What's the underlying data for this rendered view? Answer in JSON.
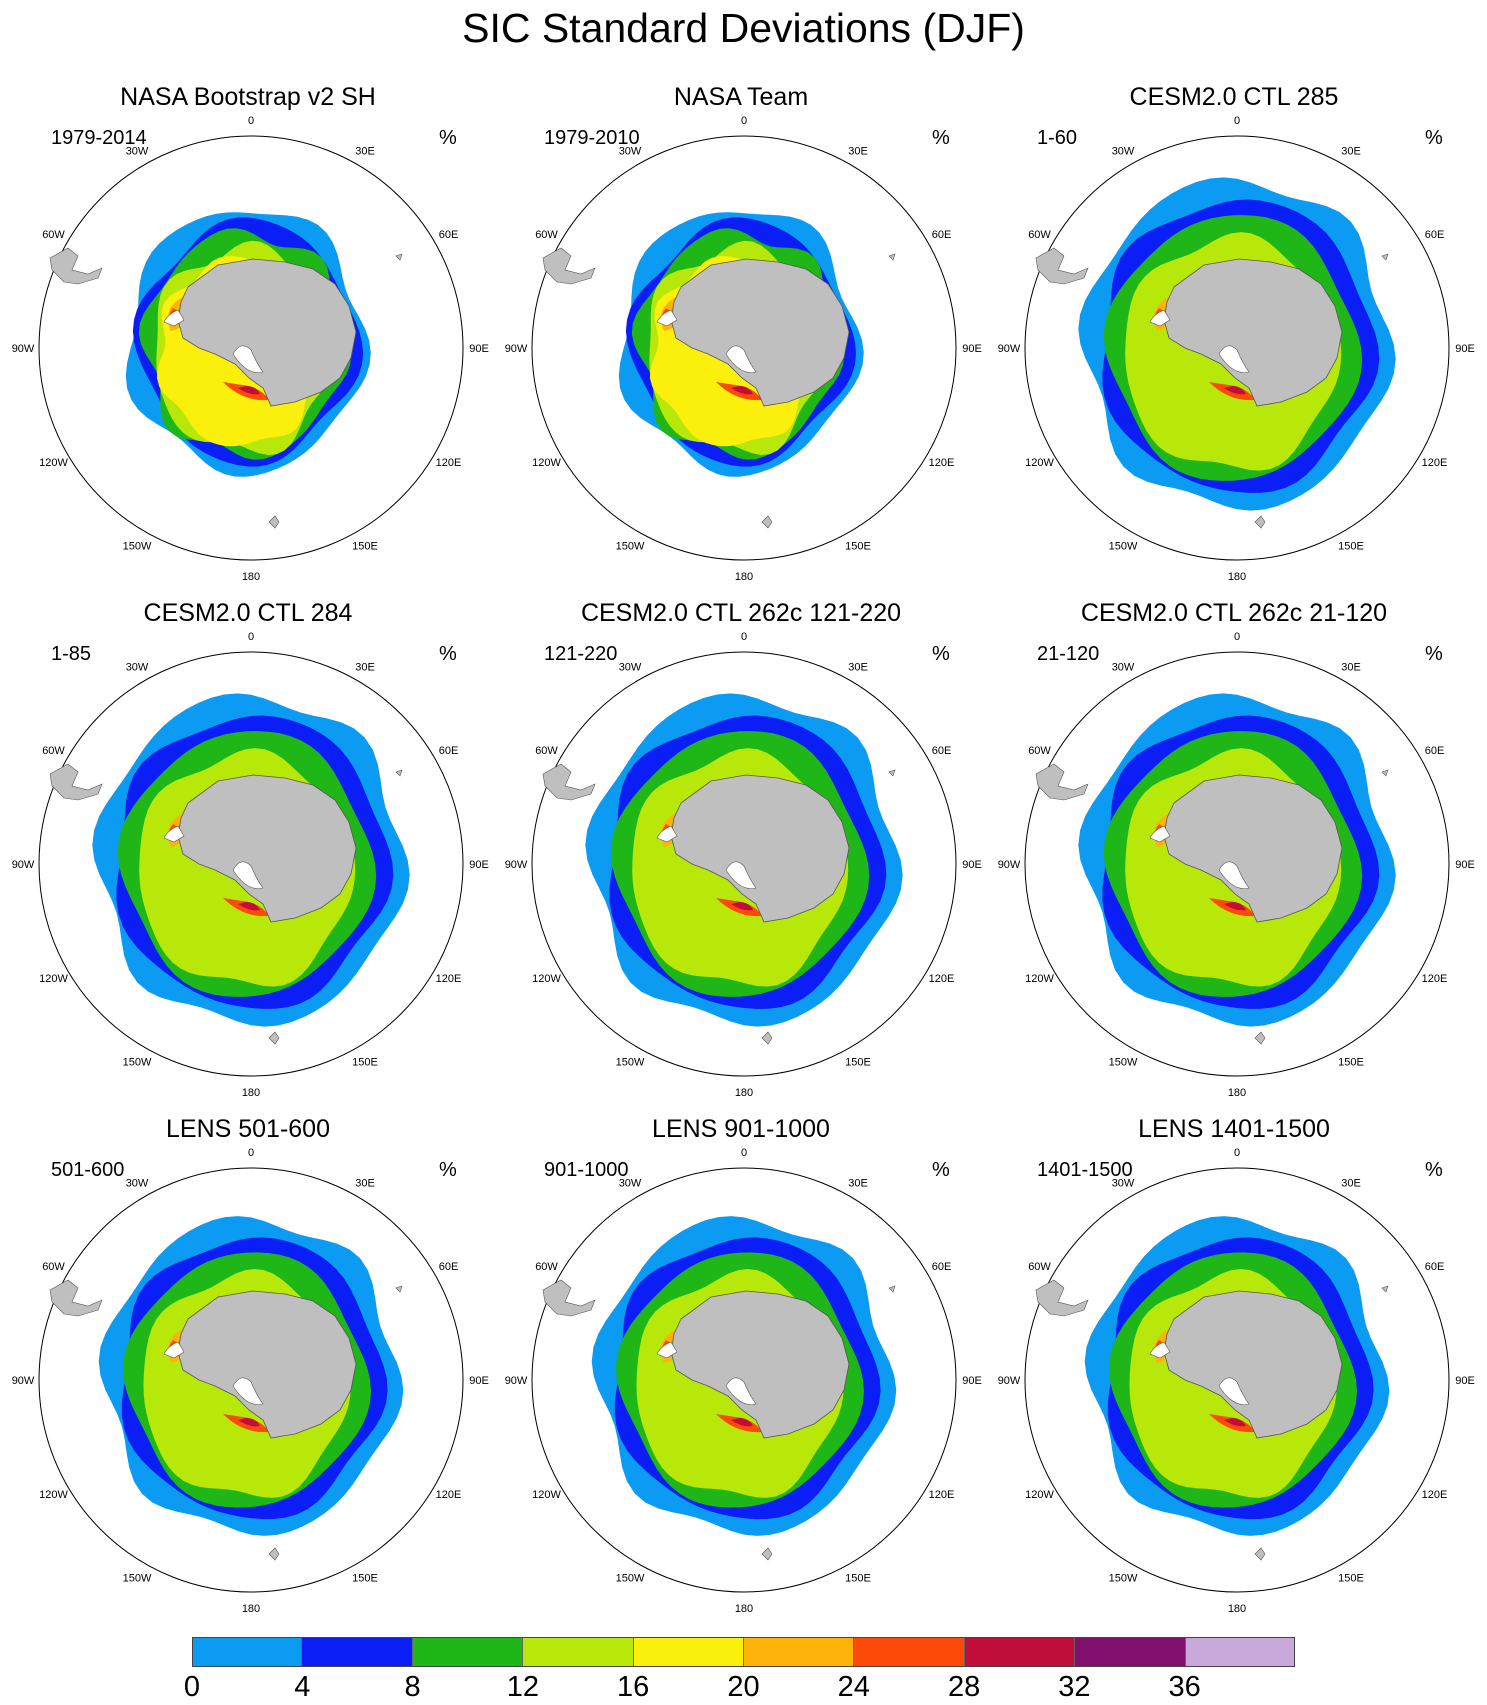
{
  "figure_title": "SIC Standard Deviations (DJF)",
  "longitude_labels": [
    "0",
    "30E",
    "60E",
    "90E",
    "120E",
    "150E",
    "180",
    "150W",
    "120W",
    "90W",
    "60W",
    "30W"
  ],
  "panels": [
    {
      "title": "NASA Bootstrap v2 SH",
      "subtitle": "1979-2014",
      "units": "%",
      "style": "obs"
    },
    {
      "title": "NASA Team",
      "subtitle": "1979-2010",
      "units": "%",
      "style": "obs"
    },
    {
      "title": "CESM2.0 CTL 285",
      "subtitle": "1-60",
      "units": "%",
      "style": "model"
    },
    {
      "title": "CESM2.0 CTL 284",
      "subtitle": "1-85",
      "units": "%",
      "style": "model"
    },
    {
      "title": "CESM2.0 CTL 262c 121-220",
      "subtitle": "121-220",
      "units": "%",
      "style": "model"
    },
    {
      "title": "CESM2.0 CTL 262c 21-120",
      "subtitle": "21-120",
      "units": "%",
      "style": "model"
    },
    {
      "title": "LENS 501-600",
      "subtitle": "501-600",
      "units": "%",
      "style": "model"
    },
    {
      "title": "LENS 901-1000",
      "subtitle": "901-1000",
      "units": "%",
      "style": "model"
    },
    {
      "title": "LENS 1401-1500",
      "subtitle": "1401-1500",
      "units": "%",
      "style": "model"
    }
  ],
  "colorbar": {
    "labels": [
      "0",
      "4",
      "8",
      "12",
      "16",
      "20",
      "24",
      "28",
      "32",
      "36"
    ],
    "colors": [
      "#0b9bf2",
      "#0a1ef5",
      "#1fb618",
      "#b8e80a",
      "#fbf00b",
      "#fdb309",
      "#fd4a08",
      "#c10d3a",
      "#800f6e",
      "#c9a9d9"
    ]
  },
  "land_color": "#bfbfbf"
}
